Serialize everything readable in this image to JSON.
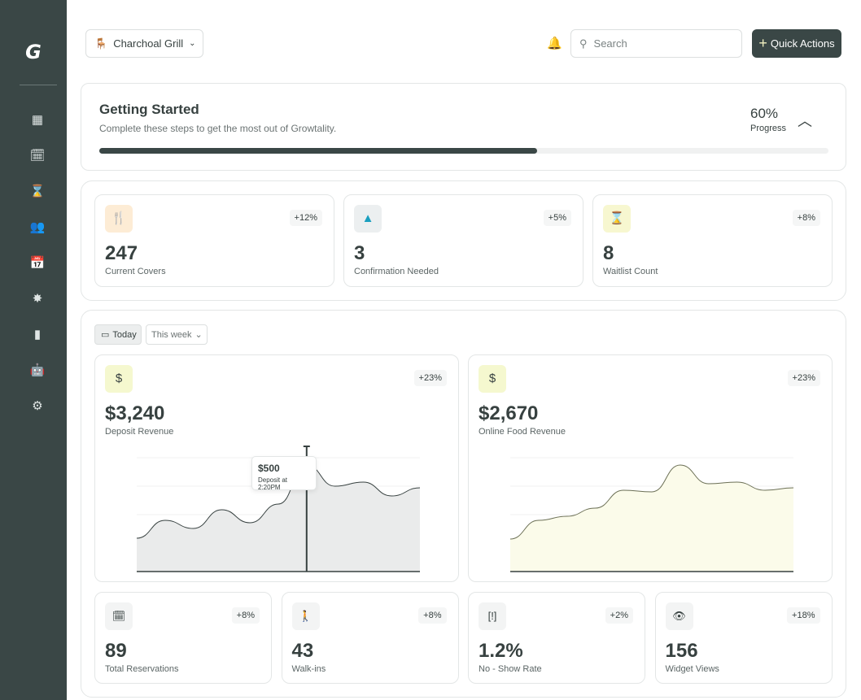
{
  "sidebar": {
    "logo": "G",
    "items": [
      {
        "icon": "dashboard-icon",
        "glyph": "▦"
      },
      {
        "icon": "calendar-check-icon",
        "glyph": "🗓"
      },
      {
        "icon": "hourglass-icon",
        "glyph": "⌛"
      },
      {
        "icon": "group-icon",
        "glyph": "👥"
      },
      {
        "icon": "calendar-icon",
        "glyph": "📅"
      },
      {
        "icon": "sparkle-icon",
        "glyph": "✸"
      },
      {
        "icon": "bar-chart-icon",
        "glyph": "▮"
      },
      {
        "icon": "robot-icon",
        "glyph": "🤖"
      },
      {
        "icon": "gear-icon",
        "glyph": "⚙"
      }
    ]
  },
  "header": {
    "venue": "Charchoal Grill",
    "search_placeholder": "Search",
    "quick_actions": "Quick Actions"
  },
  "getting_started": {
    "title": "Getting Started",
    "subtitle": "Complete these steps to get the most out of Growtality.",
    "progress_value": "60%",
    "progress_label": "Progress",
    "progress_fraction": 0.6
  },
  "stats": [
    {
      "value": "247",
      "label": "Current Covers",
      "change": "+12%",
      "icon": "fork-knife-icon",
      "glyph": "🍴",
      "bg": "#fdecd5",
      "fg": "#9c8f5c"
    },
    {
      "value": "3",
      "label": "Confirmation Needed",
      "change": "+5%",
      "icon": "warning-icon",
      "glyph": "▲",
      "bg": "#eceff0",
      "fg": "#1a9fbf"
    },
    {
      "value": "8",
      "label": "Waitlist Count",
      "change": "+8%",
      "icon": "hourglass-icon",
      "glyph": "⌛",
      "bg": "#f7f7d0",
      "fg": "#3a4746"
    }
  ],
  "filters": {
    "today": "Today",
    "range": "This week"
  },
  "revenue": [
    {
      "value": "$3,240",
      "label": "Deposit Revenue",
      "change": "+23%",
      "icon": "dollar-icon",
      "glyph": "$"
    },
    {
      "value": "$2,670",
      "label": "Online Food Revenue",
      "change": "+23%",
      "icon": "dollar-icon",
      "glyph": "$"
    }
  ],
  "tooltip": {
    "value": "$500",
    "label": "Deposit at 2:20PM"
  },
  "chart_data": [
    {
      "type": "area",
      "values": [
        41,
        63,
        53,
        76,
        60,
        83,
        131,
        105,
        110,
        93,
        103
      ],
      "ylim": [
        0,
        155
      ],
      "grid": true,
      "fill": "#eaebeb",
      "highlight_index": 6
    },
    {
      "type": "area",
      "values": [
        40,
        63,
        68,
        78,
        100,
        98,
        131,
        108,
        110,
        100,
        103
      ],
      "ylim": [
        0,
        155
      ],
      "grid": true,
      "fill": "#fbfbea"
    }
  ],
  "metrics": [
    {
      "value": "89",
      "label": "Total Reservations",
      "change": "+8%",
      "icon": "calendar-check-icon",
      "glyph": "🗓"
    },
    {
      "value": "43",
      "label": "Walk-ins",
      "change": "+8%",
      "icon": "walking-icon",
      "glyph": "🚶"
    },
    {
      "value": "1.2%",
      "label": "No - Show Rate",
      "change": "+2%",
      "icon": "focus-alert-icon",
      "glyph": "[!]"
    },
    {
      "value": "156",
      "label": "Widget Views",
      "change": "+18%",
      "icon": "eye-icon",
      "glyph": "👁"
    }
  ]
}
